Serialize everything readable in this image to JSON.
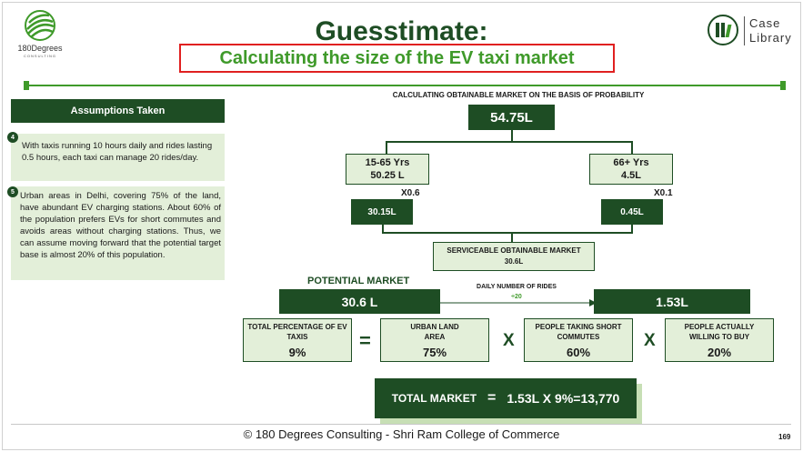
{
  "header": {
    "logo_text": "180Degrees",
    "logo_sub": "CONSULTING",
    "title": "Guesstimate:",
    "subtitle": "Calculating the size of the EV taxi market",
    "case_library_line1": "Case",
    "case_library_line2": "Library"
  },
  "assumptions": {
    "heading": "Assumptions Taken",
    "items": [
      {
        "number": "4",
        "text": "With taxis running 10 hours daily and rides lasting 0.5 hours, each taxi can manage 20 rides/day."
      },
      {
        "number": "5",
        "text": "Urban areas in Delhi, covering 75% of the land, have abundant EV charging stations. About 60% of the population prefers EVs for short commutes and avoids areas without charging stations. Thus, we can assume moving forward that the potential target base is almost 20% of this population."
      }
    ]
  },
  "tree": {
    "heading": "CALCULATING OBTAINABLE MARKET ON THE BASIS OF PROBABILITY",
    "root": "54.75L",
    "left": {
      "label": "15-65 Yrs",
      "value": "50.25 L",
      "multiplier": "X0.6",
      "result": "30.15L"
    },
    "right": {
      "label": "66+ Yrs",
      "value": "4.5L",
      "multiplier": "X0.1",
      "result": "0.45L"
    },
    "som_label": "SERVICEABLE OBTAINABLE MARKET",
    "som_value": "30.6L"
  },
  "potential": {
    "heading": "POTENTIAL MARKET",
    "value": "30.6 L",
    "arrow_label": "DAILY NUMBER OF RIDES",
    "arrow_value": "÷20",
    "result": "1.53L"
  },
  "equation": {
    "box1_label": "TOTAL PERCENTAGE OF EV TAXIS",
    "box1_value": "9%",
    "equals": "=",
    "box2_label": "URBAN LAND AREA",
    "box2_value": "75%",
    "times1": "X",
    "box3_label": "PEOPLE TAKING SHORT COMMUTES",
    "box3_value": "60%",
    "times2": "X",
    "box4_label": "PEOPLE ACTUALLY WILLING TO BUY",
    "box4_value": "20%"
  },
  "total": {
    "label": "TOTAL MARKET",
    "equals": "=",
    "formula": "1.53L X 9%=13,770"
  },
  "footer": {
    "text": "© 180 Degrees Consulting - Shri Ram College of Commerce",
    "page_number": "169"
  }
}
